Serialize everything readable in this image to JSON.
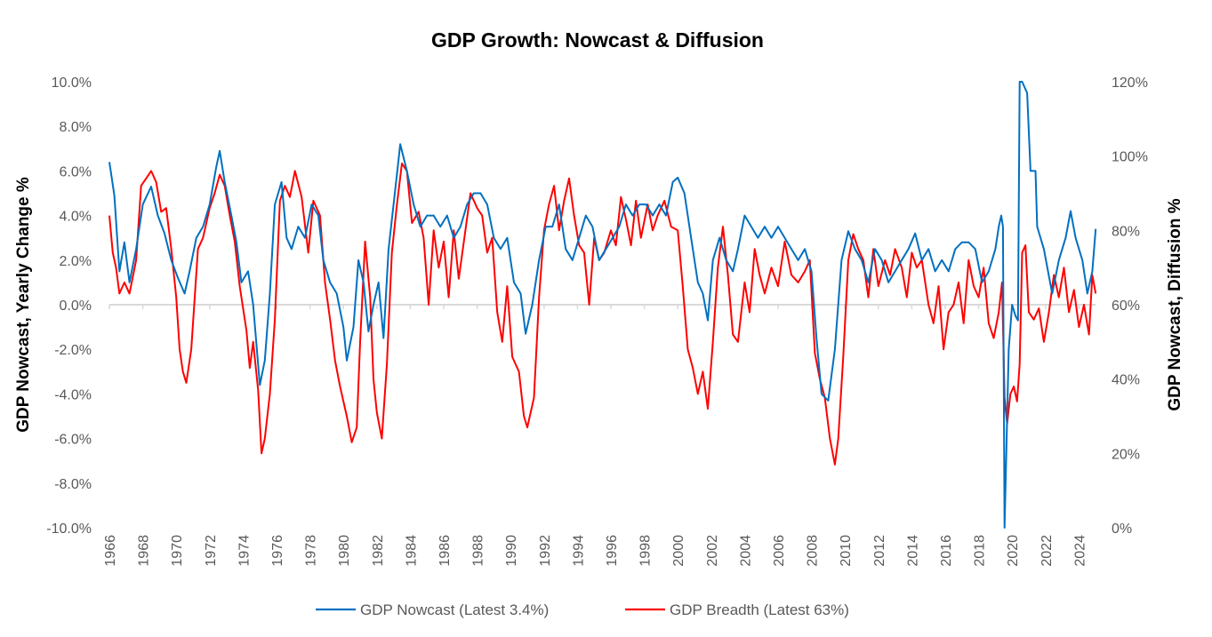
{
  "chart_data": {
    "type": "line",
    "title": "GDP Growth: Nowcast & Diffusion",
    "xlabel": "",
    "ylabel": "GDP Nowcast, Yearly Change %",
    "y2label": "GDP Nowcast, Diffusion %",
    "xlim": [
      1966,
      2025
    ],
    "ylim": [
      -10,
      10
    ],
    "y2lim": [
      0,
      120
    ],
    "x_ticks": [
      "1966",
      "1968",
      "1970",
      "1972",
      "1974",
      "1976",
      "1978",
      "1980",
      "1982",
      "1984",
      "1986",
      "1988",
      "1990",
      "1992",
      "1994",
      "1996",
      "1998",
      "2000",
      "2002",
      "2004",
      "2006",
      "2008",
      "2010",
      "2012",
      "2014",
      "2016",
      "2018",
      "2020",
      "2022",
      "2024"
    ],
    "y_ticks": [
      "10.0%",
      "8.0%",
      "6.0%",
      "4.0%",
      "2.0%",
      "0.0%",
      "-2.0%",
      "-4.0%",
      "-6.0%",
      "-8.0%",
      "-10.0%"
    ],
    "y_tick_values": [
      10,
      8,
      6,
      4,
      2,
      0,
      -2,
      -4,
      -6,
      -8,
      -10
    ],
    "y2_ticks": [
      "120%",
      "100%",
      "80%",
      "60%",
      "40%",
      "20%",
      "0%"
    ],
    "y2_tick_values": [
      120,
      100,
      80,
      60,
      40,
      20,
      0
    ],
    "grid": false,
    "legend_position": "bottom",
    "series": [
      {
        "name": "GDP Nowcast (Latest 3.4%)",
        "axis": "left",
        "color": "#0070C0",
        "x": [
          1966.0,
          1966.3,
          1966.6,
          1966.9,
          1967.2,
          1967.6,
          1968.0,
          1968.5,
          1968.9,
          1969.3,
          1969.7,
          1970.1,
          1970.5,
          1970.8,
          1971.2,
          1971.6,
          1972.0,
          1972.4,
          1972.6,
          1972.9,
          1973.3,
          1973.6,
          1973.9,
          1974.3,
          1974.6,
          1975.0,
          1975.3,
          1975.6,
          1975.9,
          1976.3,
          1976.6,
          1976.9,
          1977.3,
          1977.7,
          1978.1,
          1978.5,
          1978.8,
          1979.2,
          1979.6,
          1980.0,
          1980.2,
          1980.6,
          1980.9,
          1981.2,
          1981.5,
          1981.8,
          1982.1,
          1982.4,
          1982.7,
          1983.0,
          1983.3,
          1983.4,
          1983.8,
          1984.2,
          1984.6,
          1985.0,
          1985.4,
          1985.8,
          1986.2,
          1986.6,
          1987.0,
          1987.4,
          1987.8,
          1988.2,
          1988.6,
          1989.0,
          1989.4,
          1989.8,
          1990.2,
          1990.6,
          1990.9,
          1991.3,
          1991.7,
          1992.1,
          1992.5,
          1992.9,
          1993.3,
          1993.7,
          1994.1,
          1994.5,
          1994.9,
          1995.3,
          1995.7,
          1996.1,
          1996.5,
          1996.9,
          1997.3,
          1997.7,
          1998.1,
          1998.5,
          1998.9,
          1999.3,
          1999.7,
          2000.0,
          2000.4,
          2000.8,
          2001.2,
          2001.5,
          2001.8,
          2002.1,
          2002.5,
          2002.9,
          2003.3,
          2003.6,
          2004.0,
          2004.4,
          2004.8,
          2005.2,
          2005.6,
          2006.0,
          2006.4,
          2006.8,
          2007.2,
          2007.6,
          2008.0,
          2008.3,
          2008.6,
          2009.0,
          2009.4,
          2009.8,
          2010.2,
          2010.6,
          2011.0,
          2011.4,
          2011.8,
          2012.2,
          2012.6,
          2013.0,
          2013.4,
          2013.8,
          2014.2,
          2014.6,
          2015.0,
          2015.4,
          2015.8,
          2016.2,
          2016.6,
          2017.0,
          2017.4,
          2017.8,
          2018.2,
          2018.6,
          2019.0,
          2019.2,
          2019.35,
          2019.45,
          2019.55,
          2019.8,
          2020.0,
          2020.2,
          2020.35,
          2020.45,
          2020.6,
          2020.9,
          2021.1,
          2021.4,
          2021.5,
          2021.9,
          2022.4,
          2022.8,
          2023.2,
          2023.5,
          2023.8,
          2024.2,
          2024.5,
          2024.8,
          2025.0
        ],
        "y": [
          6.4,
          4.9,
          1.5,
          2.8,
          1.0,
          2.5,
          4.5,
          5.3,
          4.0,
          3.2,
          2.0,
          1.2,
          0.5,
          1.5,
          3.0,
          3.5,
          4.5,
          6.2,
          6.9,
          5.5,
          4.0,
          2.8,
          1.0,
          1.5,
          0.0,
          -3.6,
          -2.5,
          0.5,
          4.5,
          5.5,
          3.0,
          2.5,
          3.5,
          3.0,
          4.5,
          4.0,
          2.0,
          1.0,
          0.5,
          -1.0,
          -2.5,
          -1.0,
          2.0,
          1.0,
          -1.2,
          0.0,
          1.0,
          -1.5,
          2.5,
          4.5,
          6.5,
          7.2,
          6.0,
          4.5,
          3.5,
          4.0,
          4.0,
          3.5,
          4.0,
          3.0,
          3.5,
          4.5,
          5.0,
          5.0,
          4.5,
          3.0,
          2.5,
          3.0,
          1.0,
          0.5,
          -1.3,
          0.0,
          2.0,
          3.5,
          3.5,
          4.5,
          2.5,
          2.0,
          3.0,
          4.0,
          3.5,
          2.0,
          2.5,
          3.0,
          3.5,
          4.5,
          4.0,
          4.5,
          4.5,
          4.0,
          4.5,
          4.0,
          5.5,
          5.7,
          5.0,
          3.0,
          1.0,
          0.5,
          -0.7,
          2.0,
          3.0,
          2.0,
          1.5,
          2.5,
          4.0,
          3.5,
          3.0,
          3.5,
          3.0,
          3.5,
          3.0,
          2.5,
          2.0,
          2.5,
          1.5,
          -1.5,
          -4.0,
          -4.3,
          -2.0,
          2.0,
          3.3,
          2.5,
          2.0,
          1.0,
          2.5,
          2.0,
          1.0,
          1.5,
          2.0,
          2.5,
          3.2,
          2.0,
          2.5,
          1.5,
          2.0,
          1.5,
          2.5,
          2.8,
          2.8,
          2.5,
          1.0,
          1.5,
          2.5,
          3.5,
          4.0,
          3.5,
          -10,
          -2.0,
          0.0,
          -0.5,
          -0.7,
          10,
          10,
          9.5,
          6.0,
          6.0,
          3.5,
          2.5,
          0.5,
          2.0,
          3.0,
          4.2,
          3.0,
          2.0,
          0.5,
          1.5,
          3.4
        ]
      },
      {
        "name": "GDP Breadth (Latest 63%)",
        "axis": "right",
        "color": "#FF0000",
        "x": [
          1966.0,
          1966.2,
          1966.4,
          1966.6,
          1966.9,
          1967.2,
          1967.6,
          1967.9,
          1968.2,
          1968.5,
          1968.8,
          1969.1,
          1969.4,
          1969.7,
          1970.0,
          1970.2,
          1970.4,
          1970.6,
          1970.9,
          1971.3,
          1971.6,
          1972.0,
          1972.3,
          1972.6,
          1972.9,
          1973.2,
          1973.5,
          1973.8,
          1974.2,
          1974.4,
          1974.6,
          1974.9,
          1975.1,
          1975.3,
          1975.6,
          1975.9,
          1976.2,
          1976.5,
          1976.8,
          1977.1,
          1977.5,
          1977.9,
          1978.2,
          1978.6,
          1978.9,
          1979.2,
          1979.5,
          1979.8,
          1980.2,
          1980.5,
          1980.8,
          1981.0,
          1981.3,
          1981.6,
          1981.8,
          1982.0,
          1982.3,
          1982.6,
          1982.9,
          1983.2,
          1983.5,
          1983.8,
          1984.1,
          1984.5,
          1984.8,
          1985.1,
          1985.4,
          1985.7,
          1986.0,
          1986.3,
          1986.6,
          1986.9,
          1987.3,
          1987.6,
          1988.0,
          1988.3,
          1988.6,
          1988.9,
          1989.2,
          1989.5,
          1989.8,
          1990.1,
          1990.5,
          1990.8,
          1991.0,
          1991.4,
          1991.7,
          1992.0,
          1992.3,
          1992.6,
          1992.9,
          1993.2,
          1993.5,
          1993.8,
          1994.1,
          1994.4,
          1994.7,
          1995.0,
          1995.3,
          1995.6,
          1996.0,
          1996.3,
          1996.6,
          1996.9,
          1997.2,
          1997.5,
          1997.8,
          1998.2,
          1998.5,
          1998.8,
          1999.2,
          1999.6,
          2000.0,
          2000.3,
          2000.6,
          2000.9,
          2001.2,
          2001.5,
          2001.8,
          2002.1,
          2002.4,
          2002.7,
          2003.0,
          2003.3,
          2003.6,
          2004.0,
          2004.3,
          2004.6,
          2004.9,
          2005.2,
          2005.6,
          2006.0,
          2006.4,
          2006.8,
          2007.2,
          2007.6,
          2007.9,
          2008.2,
          2008.5,
          2008.8,
          2009.1,
          2009.4,
          2009.6,
          2009.9,
          2010.2,
          2010.5,
          2010.8,
          2011.1,
          2011.4,
          2011.7,
          2012.0,
          2012.4,
          2012.7,
          2013.0,
          2013.4,
          2013.7,
          2014.0,
          2014.3,
          2014.6,
          2015.0,
          2015.3,
          2015.6,
          2015.9,
          2016.2,
          2016.5,
          2016.8,
          2017.1,
          2017.4,
          2017.7,
          2018.0,
          2018.3,
          2018.6,
          2018.9,
          2019.2,
          2019.4,
          2019.55,
          2019.7,
          2019.9,
          2020.1,
          2020.3,
          2020.45,
          2020.6,
          2020.8,
          2021.0,
          2021.3,
          2021.6,
          2021.9,
          2022.2,
          2022.5,
          2022.8,
          2023.1,
          2023.4,
          2023.7,
          2024.0,
          2024.3,
          2024.6,
          2024.8,
          2025.0
        ],
        "y": [
          84,
          74,
          70,
          63,
          66,
          63,
          72,
          92,
          94,
          96,
          93,
          85,
          86,
          75,
          62,
          48,
          42,
          39,
          48,
          75,
          78,
          86,
          90,
          95,
          92,
          84,
          77,
          65,
          53,
          43,
          50,
          37,
          20,
          24,
          36,
          56,
          88,
          92,
          89,
          96,
          89,
          74,
          88,
          84,
          66,
          56,
          45,
          38,
          30,
          23,
          27,
          50,
          77,
          62,
          40,
          31,
          24,
          44,
          74,
          87,
          98,
          96,
          82,
          85,
          78,
          60,
          80,
          70,
          77,
          62,
          80,
          67,
          80,
          90,
          86,
          84,
          74,
          78,
          58,
          50,
          65,
          46,
          42,
          30,
          27,
          35,
          62,
          80,
          87,
          92,
          80,
          88,
          94,
          84,
          76,
          74,
          60,
          78,
          72,
          74,
          80,
          76,
          89,
          83,
          76,
          88,
          78,
          87,
          80,
          84,
          88,
          81,
          80,
          65,
          48,
          43,
          36,
          42,
          32,
          50,
          70,
          81,
          68,
          52,
          50,
          66,
          58,
          75,
          68,
          63,
          70,
          65,
          77,
          68,
          66,
          69,
          72,
          47,
          40,
          35,
          24,
          17,
          24,
          46,
          72,
          79,
          75,
          72,
          62,
          75,
          65,
          72,
          68,
          75,
          70,
          62,
          74,
          70,
          72,
          60,
          55,
          65,
          48,
          58,
          60,
          66,
          55,
          72,
          65,
          62,
          70,
          55,
          51,
          58,
          66,
          35,
          28,
          36,
          38,
          34,
          44,
          74,
          76,
          58,
          56,
          59,
          50,
          58,
          68,
          62,
          70,
          58,
          64,
          54,
          60,
          52,
          68,
          63
        ]
      }
    ]
  }
}
